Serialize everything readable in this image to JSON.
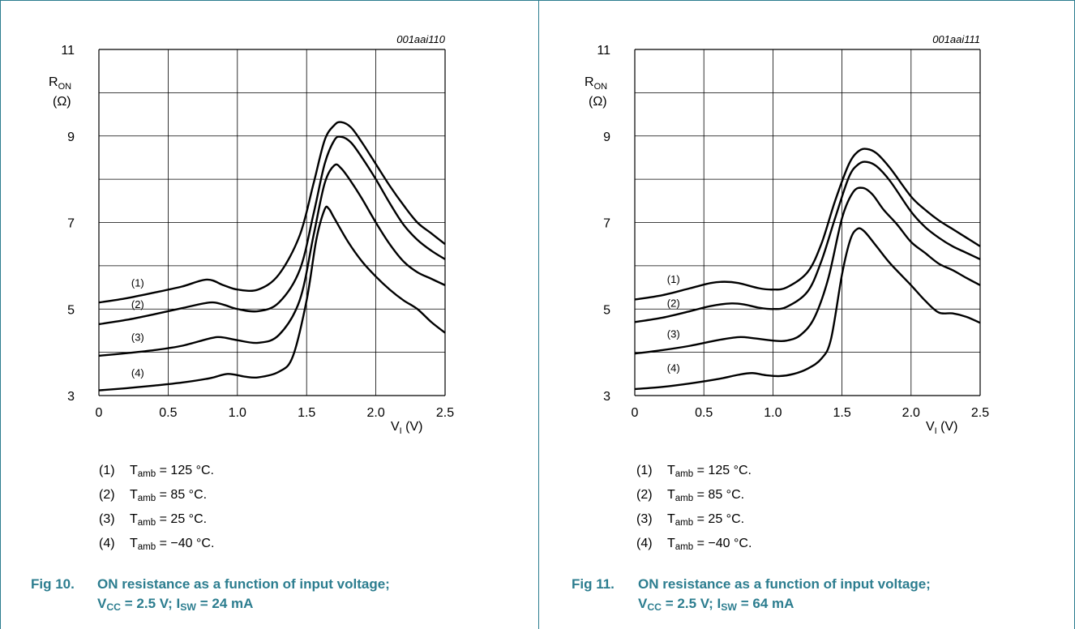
{
  "colors": {
    "accent": "#2c7d8f",
    "curve": "#000000",
    "grid": "#000000"
  },
  "panels": [
    {
      "figure_id": "001aai110",
      "caption_number": "Fig 10.",
      "caption_line1": "ON resistance as a function of input voltage;",
      "caption_line2": {
        "v": "V",
        "v_sub": "CC",
        "v_rest": " = 2.5 V; ",
        "i": "I",
        "i_sub": "SW",
        "i_rest": " = 24 mA"
      },
      "legend": [
        {
          "num": "(1)",
          "t": "T",
          "sub": "amb",
          "rest": " = 125 °C."
        },
        {
          "num": "(2)",
          "t": "T",
          "sub": "amb",
          "rest": " = 85 °C."
        },
        {
          "num": "(3)",
          "t": "T",
          "sub": "amb",
          "rest": " = 25 °C."
        },
        {
          "num": "(4)",
          "t": "T",
          "sub": "amb",
          "rest": " = −40 °C."
        }
      ]
    },
    {
      "figure_id": "001aai111",
      "caption_number": "Fig 11.",
      "caption_line1": "ON resistance as a function of input voltage;",
      "caption_line2": {
        "v": "V",
        "v_sub": "CC",
        "v_rest": " = 2.5 V; ",
        "i": "I",
        "i_sub": "SW",
        "i_rest": " = 64 mA"
      },
      "legend": [
        {
          "num": "(1)",
          "t": "T",
          "sub": "amb",
          "rest": " = 125 °C."
        },
        {
          "num": "(2)",
          "t": "T",
          "sub": "amb",
          "rest": " = 85 °C."
        },
        {
          "num": "(3)",
          "t": "T",
          "sub": "amb",
          "rest": " = 25 °C."
        },
        {
          "num": "(4)",
          "t": "T",
          "sub": "amb",
          "rest": " = −40 °C."
        }
      ]
    }
  ],
  "chart_data": [
    {
      "type": "line",
      "title": "",
      "xlabel": "V",
      "xlabel_sub": "I",
      "xlabel_unit": " (V)",
      "ylabel": "R",
      "ylabel_sub": "ON",
      "ylabel_unit": "(Ω)",
      "xlim": [
        0,
        2.5
      ],
      "ylim": [
        3,
        11
      ],
      "xticks": [
        "0",
        "0.5",
        "1.0",
        "1.5",
        "2.0",
        "2.5"
      ],
      "yticks": [
        "3",
        "5",
        "7",
        "9",
        "11"
      ],
      "grid": true,
      "series": [
        {
          "name": "(1)",
          "x": [
            0,
            0.2,
            0.4,
            0.6,
            0.78,
            0.9,
            1.0,
            1.15,
            1.3,
            1.45,
            1.55,
            1.63,
            1.7,
            1.75,
            1.82,
            1.9,
            2.0,
            2.1,
            2.2,
            2.3,
            2.4,
            2.5
          ],
          "y": [
            5.15,
            5.25,
            5.38,
            5.52,
            5.68,
            5.55,
            5.45,
            5.45,
            5.8,
            6.7,
            7.9,
            8.9,
            9.25,
            9.32,
            9.2,
            8.85,
            8.35,
            7.85,
            7.4,
            7.0,
            6.75,
            6.5
          ]
        },
        {
          "name": "(2)",
          "x": [
            0,
            0.2,
            0.4,
            0.6,
            0.8,
            0.9,
            1.0,
            1.15,
            1.3,
            1.45,
            1.55,
            1.63,
            1.7,
            1.75,
            1.82,
            1.9,
            2.0,
            2.1,
            2.2,
            2.3,
            2.4,
            2.5
          ],
          "y": [
            4.65,
            4.75,
            4.88,
            5.02,
            5.15,
            5.1,
            5.0,
            4.95,
            5.15,
            5.9,
            7.2,
            8.35,
            8.9,
            8.98,
            8.85,
            8.5,
            8.0,
            7.45,
            6.95,
            6.6,
            6.35,
            6.15
          ]
        },
        {
          "name": "(3)",
          "x": [
            0,
            0.2,
            0.4,
            0.6,
            0.8,
            0.88,
            1.0,
            1.15,
            1.3,
            1.45,
            1.55,
            1.63,
            1.7,
            1.75,
            1.82,
            1.9,
            2.0,
            2.1,
            2.2,
            2.3,
            2.4,
            2.5
          ],
          "y": [
            3.92,
            3.98,
            4.05,
            4.15,
            4.32,
            4.35,
            4.28,
            4.22,
            4.4,
            5.2,
            6.7,
            7.9,
            8.32,
            8.25,
            7.95,
            7.55,
            7.0,
            6.5,
            6.1,
            5.85,
            5.7,
            5.55
          ]
        },
        {
          "name": "(4)",
          "x": [
            0,
            0.2,
            0.4,
            0.6,
            0.8,
            0.93,
            1.05,
            1.15,
            1.3,
            1.4,
            1.5,
            1.57,
            1.63,
            1.66,
            1.7,
            1.8,
            1.9,
            2.0,
            2.1,
            2.2,
            2.3,
            2.4,
            2.5
          ],
          "y": [
            3.12,
            3.17,
            3.23,
            3.3,
            3.4,
            3.5,
            3.44,
            3.42,
            3.55,
            3.9,
            5.2,
            6.6,
            7.3,
            7.32,
            7.1,
            6.55,
            6.1,
            5.75,
            5.45,
            5.2,
            5.0,
            4.7,
            4.45
          ]
        }
      ]
    },
    {
      "type": "line",
      "title": "",
      "xlabel": "V",
      "xlabel_sub": "I",
      "xlabel_unit": " (V)",
      "ylabel": "R",
      "ylabel_sub": "ON",
      "ylabel_unit": "(Ω)",
      "xlim": [
        0,
        2.5
      ],
      "ylim": [
        3,
        11
      ],
      "xticks": [
        "0",
        "0.5",
        "1.0",
        "1.5",
        "2.0",
        "2.5"
      ],
      "yticks": [
        "3",
        "5",
        "7",
        "9",
        "11"
      ],
      "grid": true,
      "series": [
        {
          "name": "(1)",
          "x": [
            0,
            0.2,
            0.4,
            0.55,
            0.65,
            0.75,
            0.9,
            1.0,
            1.1,
            1.25,
            1.35,
            1.45,
            1.55,
            1.62,
            1.68,
            1.75,
            1.85,
            2.0,
            2.1,
            2.2,
            2.3,
            2.4,
            2.5
          ],
          "y": [
            5.22,
            5.32,
            5.48,
            5.6,
            5.63,
            5.6,
            5.48,
            5.45,
            5.5,
            5.85,
            6.5,
            7.5,
            8.35,
            8.65,
            8.7,
            8.6,
            8.25,
            7.6,
            7.3,
            7.05,
            6.85,
            6.65,
            6.45
          ]
        },
        {
          "name": "(2)",
          "x": [
            0,
            0.2,
            0.4,
            0.55,
            0.7,
            0.8,
            0.9,
            1.0,
            1.1,
            1.25,
            1.35,
            1.45,
            1.55,
            1.62,
            1.68,
            1.75,
            1.85,
            2.0,
            2.1,
            2.2,
            2.3,
            2.4,
            2.5
          ],
          "y": [
            4.7,
            4.8,
            4.95,
            5.07,
            5.13,
            5.1,
            5.03,
            5.0,
            5.05,
            5.4,
            6.1,
            7.1,
            8.05,
            8.35,
            8.4,
            8.3,
            7.95,
            7.25,
            6.9,
            6.65,
            6.45,
            6.3,
            6.15
          ]
        },
        {
          "name": "(3)",
          "x": [
            0,
            0.2,
            0.4,
            0.6,
            0.75,
            0.85,
            1.0,
            1.1,
            1.2,
            1.3,
            1.4,
            1.5,
            1.58,
            1.65,
            1.72,
            1.8,
            1.9,
            2.0,
            2.1,
            2.2,
            2.3,
            2.4,
            2.5
          ],
          "y": [
            3.97,
            4.05,
            4.15,
            4.28,
            4.35,
            4.33,
            4.27,
            4.27,
            4.4,
            4.8,
            5.7,
            7.1,
            7.7,
            7.8,
            7.65,
            7.3,
            6.95,
            6.55,
            6.3,
            6.05,
            5.9,
            5.72,
            5.55
          ]
        },
        {
          "name": "(4)",
          "x": [
            0,
            0.2,
            0.4,
            0.6,
            0.75,
            0.85,
            0.95,
            1.05,
            1.15,
            1.25,
            1.35,
            1.42,
            1.5,
            1.56,
            1.61,
            1.66,
            1.75,
            1.85,
            2.0,
            2.1,
            2.2,
            2.3,
            2.4,
            2.5
          ],
          "y": [
            3.15,
            3.2,
            3.28,
            3.38,
            3.48,
            3.52,
            3.47,
            3.45,
            3.5,
            3.62,
            3.85,
            4.3,
            5.8,
            6.6,
            6.85,
            6.8,
            6.45,
            6.05,
            5.55,
            5.2,
            4.92,
            4.9,
            4.82,
            4.68
          ]
        }
      ]
    }
  ]
}
